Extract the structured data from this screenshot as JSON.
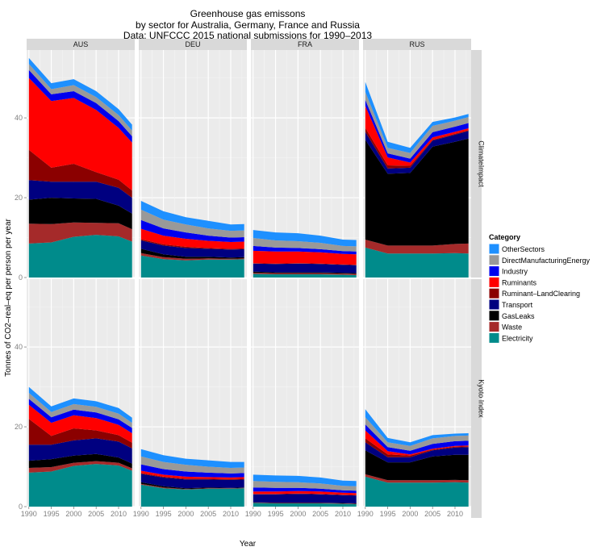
{
  "chart_data": {
    "type": "area",
    "stacked": true,
    "title": "Greenhouse gas emissons",
    "subtitle": "by sector for Australia, Germany, France and Russia",
    "subtitle2": "Data: UNFCCC 2015 national submissions for 1990–2013",
    "xlabel": "Year",
    "ylabel": "Tonnes of CO2–real–eq per person per year",
    "facet_cols": [
      "AUS",
      "DEU",
      "FRA",
      "RUS"
    ],
    "facet_rows": [
      "ClimateImpact",
      "Kyoto Index"
    ],
    "xlim": [
      1989.5,
      2013.6
    ],
    "ylim": [
      0,
      57
    ],
    "x_ticks": [
      1990,
      1995,
      2000,
      2005,
      2010
    ],
    "x_tick_labels": [
      "1990",
      "1995",
      "2000",
      "2005",
      "2010"
    ],
    "y_ticks": [
      0,
      20,
      40
    ],
    "y_tick_labels": [
      "0",
      "20",
      "40"
    ],
    "grid": true,
    "legend": {
      "title": "Category",
      "position": "right",
      "entries": [
        {
          "name": "OtherSectors",
          "color": "#1e90ff"
        },
        {
          "name": "DirectManufacturingEnergy",
          "color": "#999999"
        },
        {
          "name": "Industry",
          "color": "#0000ee"
        },
        {
          "name": "Ruminants",
          "color": "#ff0000"
        },
        {
          "name": "Ruminant–LandClearing",
          "color": "#8b0000"
        },
        {
          "name": "Transport",
          "color": "#000080"
        },
        {
          "name": "GasLeaks",
          "color": "#000000"
        },
        {
          "name": "Waste",
          "color": "#a52a2a"
        },
        {
          "name": "Electricity",
          "color": "#008b8b"
        }
      ]
    },
    "stack_order_bottom_to_top": [
      "Electricity",
      "Waste",
      "GasLeaks",
      "Transport",
      "Ruminant–LandClearing",
      "Ruminants",
      "Industry",
      "DirectManufacturingEnergy",
      "OtherSectors"
    ],
    "panels": [
      {
        "row": "ClimateImpact",
        "col": "AUS",
        "x": [
          1990,
          1995,
          2000,
          2005,
          2010,
          2013
        ],
        "series": [
          {
            "name": "Electricity",
            "values": [
              8.5,
              8.8,
              10.2,
              10.7,
              10.3,
              9.0
            ]
          },
          {
            "name": "Waste",
            "values": [
              5.0,
              4.6,
              3.6,
              3.0,
              3.3,
              3.1
            ]
          },
          {
            "name": "GasLeaks",
            "values": [
              6.0,
              6.6,
              6.0,
              6.0,
              4.4,
              3.9
            ]
          },
          {
            "name": "Transport",
            "values": [
              4.9,
              4.0,
              4.2,
              4.3,
              4.5,
              4.0
            ]
          },
          {
            "name": "Ruminant–LandClearing",
            "values": [
              7.6,
              3.5,
              4.5,
              2.4,
              2.0,
              1.8
            ]
          },
          {
            "name": "Ruminants",
            "values": [
              18.0,
              16.7,
              16.5,
              15.6,
              13.0,
              12.0
            ]
          },
          {
            "name": "Industry",
            "values": [
              2.0,
              1.7,
              1.7,
              1.7,
              1.7,
              1.6
            ]
          },
          {
            "name": "DirectManufacturingEnergy",
            "values": [
              1.5,
              1.3,
              1.5,
              1.5,
              1.5,
              1.4
            ]
          },
          {
            "name": "OtherSectors",
            "values": [
              1.5,
              1.5,
              1.5,
              1.5,
              1.5,
              1.5
            ]
          }
        ]
      },
      {
        "row": "ClimateImpact",
        "col": "DEU",
        "x": [
          1990,
          1995,
          2000,
          2005,
          2010,
          2013
        ],
        "series": [
          {
            "name": "Electricity",
            "values": [
              5.5,
              4.6,
              4.3,
              4.5,
              4.5,
              4.6
            ]
          },
          {
            "name": "Waste",
            "values": [
              0.6,
              0.5,
              0.4,
              0.3,
              0.2,
              0.2
            ]
          },
          {
            "name": "GasLeaks",
            "values": [
              1.1,
              0.7,
              0.5,
              0.4,
              0.3,
              0.3
            ]
          },
          {
            "name": "Transport",
            "values": [
              2.1,
              2.2,
              2.2,
              2.0,
              2.0,
              2.0
            ]
          },
          {
            "name": "Ruminant–LandClearing",
            "values": [
              0.3,
              0.3,
              0.3,
              0.2,
              0.2,
              0.2
            ]
          },
          {
            "name": "Ruminants",
            "values": [
              2.6,
              2.2,
              2.0,
              1.8,
              1.7,
              1.7
            ]
          },
          {
            "name": "Industry",
            "values": [
              2.2,
              1.8,
              1.6,
              1.3,
              1.1,
              1.1
            ]
          },
          {
            "name": "DirectManufacturingEnergy",
            "values": [
              2.6,
              2.2,
              2.0,
              1.8,
              1.7,
              1.7
            ]
          },
          {
            "name": "OtherSectors",
            "values": [
              2.2,
              2.1,
              1.8,
              1.9,
              1.6,
              1.6
            ]
          }
        ]
      },
      {
        "row": "ClimateImpact",
        "col": "FRA",
        "x": [
          1990,
          1995,
          2000,
          2005,
          2010,
          2013
        ],
        "series": [
          {
            "name": "Electricity",
            "values": [
              0.9,
              0.8,
              0.8,
              0.8,
              0.7,
              0.6
            ]
          },
          {
            "name": "Waste",
            "values": [
              0.3,
              0.3,
              0.3,
              0.3,
              0.3,
              0.3
            ]
          },
          {
            "name": "GasLeaks",
            "values": [
              0.3,
              0.2,
              0.2,
              0.2,
              0.2,
              0.2
            ]
          },
          {
            "name": "Transport",
            "values": [
              2.0,
              2.1,
              2.2,
              2.1,
              2.0,
              2.0
            ]
          },
          {
            "name": "Ruminant–LandClearing",
            "values": [
              0.1,
              0.1,
              0.1,
              0.1,
              0.1,
              0.1
            ]
          },
          {
            "name": "Ruminants",
            "values": [
              3.1,
              3.0,
              2.9,
              2.8,
              2.6,
              2.6
            ]
          },
          {
            "name": "Industry",
            "values": [
              1.2,
              1.0,
              0.9,
              0.8,
              0.7,
              0.7
            ]
          },
          {
            "name": "DirectManufacturingEnergy",
            "values": [
              2.0,
              1.8,
              1.7,
              1.6,
              1.3,
              1.3
            ]
          },
          {
            "name": "OtherSectors",
            "values": [
              2.0,
              2.0,
              2.0,
              1.8,
              1.6,
              1.6
            ]
          }
        ]
      },
      {
        "row": "ClimateImpact",
        "col": "RUS",
        "x": [
          1990,
          1995,
          2000,
          2005,
          2010,
          2013
        ],
        "series": [
          {
            "name": "Electricity",
            "values": [
              7.5,
              6.0,
              6.0,
              6.0,
              6.1,
              6.0
            ]
          },
          {
            "name": "Waste",
            "values": [
              2.0,
              2.0,
              2.0,
              2.0,
              2.3,
              2.5
            ]
          },
          {
            "name": "GasLeaks",
            "values": [
              25.0,
              18.0,
              18.2,
              24.8,
              25.6,
              26.3
            ]
          },
          {
            "name": "Transport",
            "values": [
              2.0,
              1.3,
              1.3,
              1.5,
              1.8,
              1.9
            ]
          },
          {
            "name": "Ruminant–LandClearing",
            "values": [
              1.0,
              0.8,
              0.5,
              0.2,
              0.2,
              0.2
            ]
          },
          {
            "name": "Ruminants",
            "values": [
              5.5,
              2.0,
              0.8,
              0.6,
              0.5,
              0.5
            ]
          },
          {
            "name": "Industry",
            "values": [
              1.5,
              1.0,
              1.0,
              1.3,
              1.3,
              1.3
            ]
          },
          {
            "name": "DirectManufacturingEnergy",
            "values": [
              2.0,
              1.4,
              1.4,
              1.6,
              1.5,
              1.5
            ]
          },
          {
            "name": "OtherSectors",
            "values": [
              2.5,
              1.5,
              1.3,
              1.0,
              0.8,
              0.8
            ]
          }
        ]
      },
      {
        "row": "Kyoto Index",
        "col": "AUS",
        "x": [
          1990,
          1995,
          2000,
          2005,
          2010,
          2013
        ],
        "series": [
          {
            "name": "Electricity",
            "values": [
              8.5,
              8.8,
              10.2,
              10.7,
              10.3,
              9.0
            ]
          },
          {
            "name": "Waste",
            "values": [
              1.2,
              1.1,
              0.8,
              0.7,
              0.7,
              0.6
            ]
          },
          {
            "name": "GasLeaks",
            "values": [
              1.8,
              2.0,
              1.8,
              1.8,
              1.3,
              1.2
            ]
          },
          {
            "name": "Transport",
            "values": [
              4.0,
              3.6,
              3.8,
              3.9,
              4.0,
              3.8
            ]
          },
          {
            "name": "Ruminant–LandClearing",
            "values": [
              6.5,
              2.2,
              3.0,
              2.0,
              1.6,
              1.4
            ]
          },
          {
            "name": "Ruminants",
            "values": [
              3.5,
              3.3,
              3.3,
              3.1,
              2.6,
              2.4
            ]
          },
          {
            "name": "Industry",
            "values": [
              1.5,
              1.4,
              1.4,
              1.4,
              1.4,
              1.3
            ]
          },
          {
            "name": "DirectManufacturingEnergy",
            "values": [
              1.5,
              1.3,
              1.4,
              1.4,
              1.4,
              1.3
            ]
          },
          {
            "name": "OtherSectors",
            "values": [
              1.5,
              1.4,
              1.4,
              1.4,
              1.4,
              1.3
            ]
          }
        ]
      },
      {
        "row": "Kyoto Index",
        "col": "DEU",
        "x": [
          1990,
          1995,
          2000,
          2005,
          2010,
          2013
        ],
        "series": [
          {
            "name": "Electricity",
            "values": [
              5.5,
              4.6,
              4.3,
              4.5,
              4.5,
              4.6
            ]
          },
          {
            "name": "Waste",
            "values": [
              0.2,
              0.2,
              0.1,
              0.1,
              0.1,
              0.1
            ]
          },
          {
            "name": "GasLeaks",
            "values": [
              0.4,
              0.3,
              0.2,
              0.2,
              0.1,
              0.1
            ]
          },
          {
            "name": "Transport",
            "values": [
              2.1,
              2.2,
              2.2,
              2.0,
              2.0,
              2.0
            ]
          },
          {
            "name": "Ruminant–LandClearing",
            "values": [
              0.2,
              0.2,
              0.2,
              0.2,
              0.2,
              0.2
            ]
          },
          {
            "name": "Ruminants",
            "values": [
              0.6,
              0.5,
              0.5,
              0.4,
              0.4,
              0.4
            ]
          },
          {
            "name": "Industry",
            "values": [
              1.6,
              1.4,
              1.3,
              1.1,
              1.0,
              1.0
            ]
          },
          {
            "name": "DirectManufacturingEnergy",
            "values": [
              2.0,
              1.8,
              1.7,
              1.5,
              1.4,
              1.4
            ]
          },
          {
            "name": "OtherSectors",
            "values": [
              1.8,
              1.7,
              1.5,
              1.6,
              1.5,
              1.4
            ]
          }
        ]
      },
      {
        "row": "Kyoto Index",
        "col": "FRA",
        "x": [
          1990,
          1995,
          2000,
          2005,
          2010,
          2013
        ],
        "series": [
          {
            "name": "Electricity",
            "values": [
              0.9,
              0.8,
              0.8,
              0.8,
              0.7,
              0.6
            ]
          },
          {
            "name": "Waste",
            "values": [
              0.1,
              0.1,
              0.1,
              0.1,
              0.1,
              0.1
            ]
          },
          {
            "name": "GasLeaks",
            "values": [
              0.1,
              0.1,
              0.1,
              0.1,
              0.1,
              0.1
            ]
          },
          {
            "name": "Transport",
            "values": [
              2.0,
              2.1,
              2.2,
              2.1,
              2.0,
              2.0
            ]
          },
          {
            "name": "Ruminant–LandClearing",
            "values": [
              0.1,
              0.1,
              0.1,
              0.1,
              0.1,
              0.1
            ]
          },
          {
            "name": "Ruminants",
            "values": [
              0.6,
              0.6,
              0.6,
              0.6,
              0.5,
              0.5
            ]
          },
          {
            "name": "Industry",
            "values": [
              1.0,
              0.9,
              0.8,
              0.7,
              0.6,
              0.6
            ]
          },
          {
            "name": "DirectManufacturingEnergy",
            "values": [
              1.6,
              1.5,
              1.4,
              1.3,
              1.1,
              1.1
            ]
          },
          {
            "name": "OtherSectors",
            "values": [
              1.6,
              1.6,
              1.6,
              1.5,
              1.3,
              1.3
            ]
          }
        ]
      },
      {
        "row": "Kyoto Index",
        "col": "RUS",
        "x": [
          1990,
          1995,
          2000,
          2005,
          2010,
          2013
        ],
        "series": [
          {
            "name": "Electricity",
            "values": [
              7.5,
              6.0,
              6.0,
              6.0,
              6.1,
              6.0
            ]
          },
          {
            "name": "Waste",
            "values": [
              0.6,
              0.6,
              0.6,
              0.6,
              0.6,
              0.6
            ]
          },
          {
            "name": "GasLeaks",
            "values": [
              6.0,
              4.5,
              4.5,
              6.0,
              6.3,
              6.4
            ]
          },
          {
            "name": "Transport",
            "values": [
              2.0,
              1.3,
              1.3,
              1.5,
              1.8,
              1.9
            ]
          },
          {
            "name": "Ruminant–LandClearing",
            "values": [
              1.0,
              0.7,
              0.4,
              0.2,
              0.2,
              0.2
            ]
          },
          {
            "name": "Ruminants",
            "values": [
              2.0,
              0.8,
              0.3,
              0.2,
              0.2,
              0.2
            ]
          },
          {
            "name": "Industry",
            "values": [
              1.5,
              1.0,
              0.9,
              1.2,
              1.2,
              1.2
            ]
          },
          {
            "name": "DirectManufacturingEnergy",
            "values": [
              1.8,
              1.2,
              1.2,
              1.4,
              1.3,
              1.3
            ]
          },
          {
            "name": "OtherSectors",
            "values": [
              2.0,
              1.1,
              0.9,
              0.8,
              0.6,
              0.6
            ]
          }
        ]
      }
    ]
  }
}
